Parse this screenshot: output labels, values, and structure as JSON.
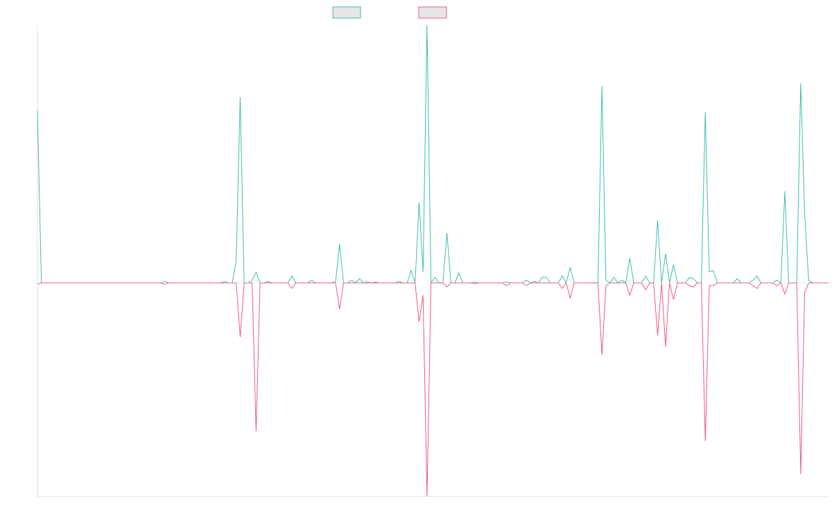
{
  "chart_data": {
    "type": "line",
    "ylim": [
      -77,
      93
    ],
    "legend": "top",
    "series": [
      {
        "color": "#3bbfad",
        "values": [
          62,
          0,
          0,
          0,
          0,
          0,
          0,
          0,
          0,
          0,
          0,
          0,
          0,
          0,
          0,
          0,
          0,
          0,
          0,
          0,
          0,
          0,
          0,
          0,
          0,
          0,
          0,
          0,
          0,
          0,
          0,
          0,
          0.5,
          0,
          0,
          0,
          0,
          0,
          0,
          0,
          0,
          0,
          0,
          0,
          0,
          0,
          0,
          0.5,
          0,
          0,
          8,
          67,
          0,
          0,
          1,
          3.75,
          0,
          0,
          0.5,
          0,
          0,
          0,
          0,
          0,
          2.5,
          0,
          0,
          0,
          0,
          1,
          0,
          0,
          0,
          0,
          0,
          0.5,
          14,
          0,
          0,
          1,
          0,
          1.5,
          0,
          0.3,
          0,
          0.3,
          0,
          0,
          0,
          0,
          0,
          0.5,
          0,
          0,
          4.5,
          0,
          29,
          4,
          93,
          0,
          2,
          0,
          0,
          18,
          0,
          0,
          3.5,
          0,
          0,
          0,
          0.3,
          0,
          0,
          0,
          0,
          0,
          0,
          0,
          0.3,
          0,
          0,
          0,
          0,
          1,
          0,
          0.5,
          0,
          2,
          2,
          0,
          0,
          0,
          2.5,
          0,
          5.5,
          0,
          0,
          0,
          0,
          0,
          0,
          0,
          71,
          1,
          0,
          2,
          0,
          1,
          0,
          9,
          0,
          0,
          0,
          2.5,
          0,
          0,
          22.5,
          0,
          10.5,
          0,
          6.5,
          0,
          0,
          0,
          2,
          1.5,
          0,
          0,
          61.5,
          4,
          4.5,
          0,
          0,
          0,
          0,
          0,
          1.5,
          0,
          0,
          0,
          1,
          2.5,
          0,
          0,
          0,
          0,
          1,
          0,
          33,
          0,
          0,
          0,
          72,
          24.5,
          1,
          0,
          0,
          0,
          0,
          0
        ]
      },
      {
        "color": "#f0587e",
        "values": [
          -0.5,
          0,
          0,
          0,
          0,
          0,
          0,
          0,
          0,
          0,
          0,
          0,
          0,
          0,
          0,
          0,
          0,
          0,
          0,
          0,
          0,
          0,
          0,
          0,
          0,
          0,
          0,
          0,
          0,
          0,
          0,
          0,
          -0.5,
          0,
          0,
          0,
          0,
          0,
          0,
          0,
          0,
          0,
          0,
          0,
          0,
          0,
          0,
          0,
          0,
          0,
          0,
          -19.5,
          0,
          0,
          0,
          -53.5,
          0,
          0,
          0,
          0,
          0,
          0,
          0,
          0,
          -2,
          0,
          0,
          0,
          0,
          0,
          0,
          0,
          0,
          0,
          0,
          0,
          -9.5,
          0,
          0,
          0,
          0,
          0,
          0,
          0,
          0,
          0,
          0,
          0,
          0,
          0,
          0,
          0,
          0,
          0,
          0,
          0,
          -14,
          -4.5,
          -77,
          0,
          0,
          0,
          0,
          -1.5,
          0,
          0,
          0,
          0,
          0,
          0,
          -0.3,
          0,
          0,
          0,
          0,
          0,
          0,
          0,
          -1,
          0,
          0,
          0,
          0,
          -1,
          0,
          0,
          0,
          0,
          0,
          0,
          0,
          0,
          -2,
          0,
          -5.5,
          0,
          0,
          0,
          0,
          0,
          0,
          0,
          -26,
          -1,
          0,
          0,
          0,
          0,
          0,
          -4.5,
          0,
          0,
          0,
          -2.5,
          0,
          0,
          -19,
          0,
          -23,
          0,
          -6,
          0,
          0,
          0,
          -1,
          -1.5,
          0,
          0,
          -57,
          -1,
          -1,
          0,
          0,
          0,
          0,
          0,
          0,
          0,
          0,
          0,
          -1,
          -2,
          0,
          0,
          0,
          0,
          -1,
          0,
          -4,
          0,
          0,
          0,
          -69,
          -3.5,
          0,
          0,
          0,
          0,
          0,
          0
        ]
      }
    ]
  }
}
